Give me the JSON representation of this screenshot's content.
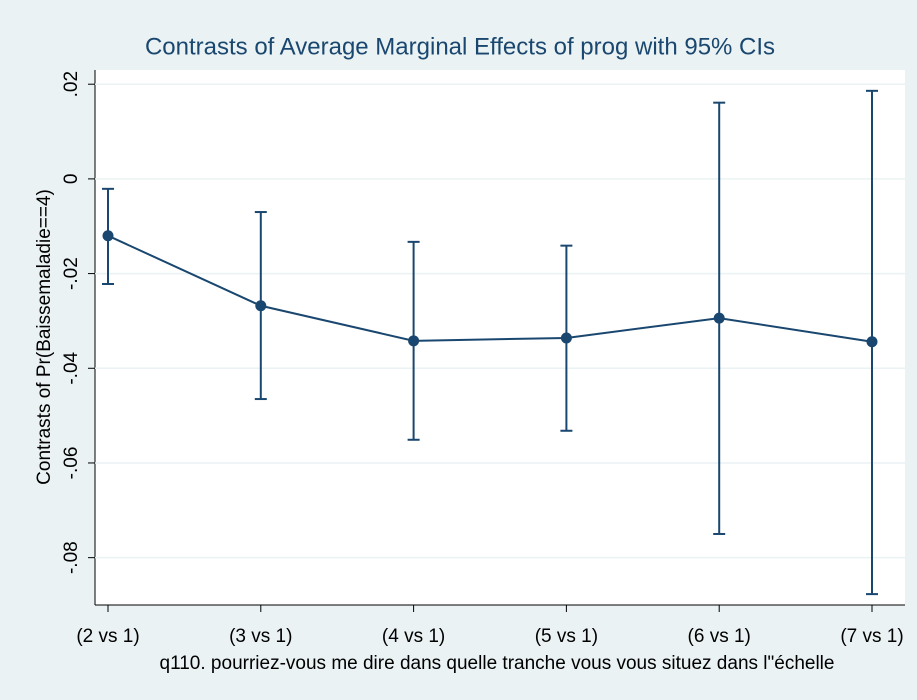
{
  "chart_data": {
    "type": "errorbar",
    "title": "Contrasts of Average Marginal Effects of prog with 95% CIs",
    "x_label": "q110. pourriez-vous me dire dans quelle tranche vous vous situez dans l\"échelle",
    "y_label": "Contrasts of Pr(Baissemaladie==4)",
    "categories": [
      "(2 vs 1)",
      "(3 vs 1)",
      "(4 vs 1)",
      "(5 vs 1)",
      "(6 vs 1)",
      "(7 vs 1)"
    ],
    "series": [
      {
        "color": "#1a476f",
        "values": [
          -0.012,
          -0.0268,
          -0.0342,
          -0.0336,
          -0.0294,
          -0.0344
        ],
        "lower": [
          -0.0222,
          -0.0465,
          -0.0551,
          -0.0532,
          -0.075,
          -0.0877
        ],
        "upper": [
          -0.0021,
          -0.007,
          -0.0133,
          -0.0141,
          0.0161,
          0.0186
        ]
      }
    ],
    "ylim": [
      -0.09,
      0.023
    ],
    "yticks": [
      {
        "value": 0.02,
        "label": ".02"
      },
      0,
      {
        "value": -0.02,
        "label": "-.02"
      },
      {
        "value": -0.04,
        "label": "-.04"
      },
      {
        "value": -0.06,
        "label": "-.06"
      },
      {
        "value": -0.08,
        "label": "-.08"
      }
    ],
    "grid": true
  }
}
